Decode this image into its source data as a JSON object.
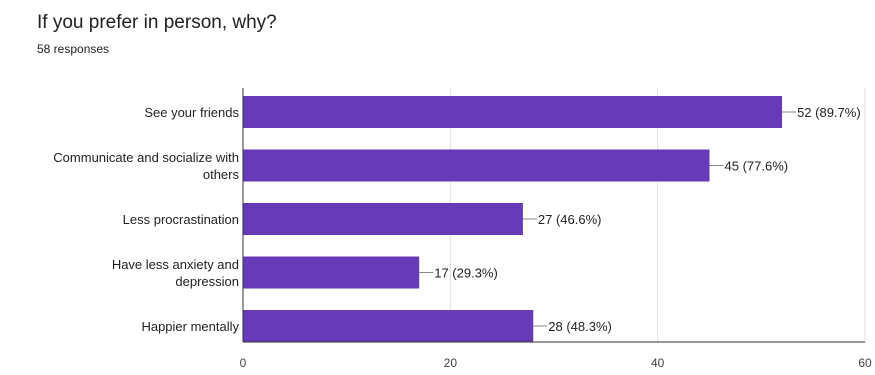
{
  "header": {
    "title": "If you prefer in person, why?",
    "responses": "58 responses"
  },
  "colors": {
    "bar": "#673ab7",
    "grid": "#e0e0e0",
    "axis": "#333333",
    "connector": "#888888"
  },
  "chart_data": {
    "type": "bar",
    "orientation": "horizontal",
    "title": "If you prefer in person, why?",
    "subtitle": "58 responses",
    "categories": [
      [
        "See your friends"
      ],
      [
        "Communicate and socialize with",
        "others"
      ],
      [
        "Less procrastination"
      ],
      [
        "Have less anxiety and",
        "depression"
      ],
      [
        "Happier mentally"
      ]
    ],
    "values": [
      52,
      45,
      27,
      17,
      28
    ],
    "value_labels": [
      "52 (89.7%)",
      "45 (77.6%)",
      "27 (46.6%)",
      "17 (29.3%)",
      "28 (48.3%)"
    ],
    "xlim": [
      0,
      60
    ],
    "xticks": [
      "0",
      "20",
      "40",
      "60"
    ],
    "grid": true
  }
}
